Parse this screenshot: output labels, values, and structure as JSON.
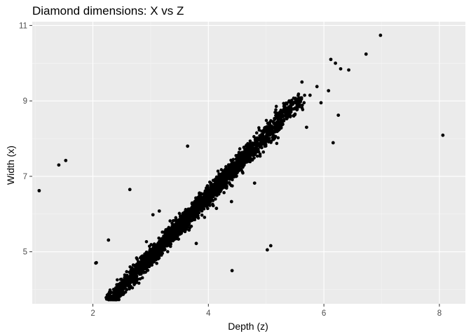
{
  "chart_data": {
    "type": "scatter",
    "title": "Diamond dimensions: X vs Z",
    "xlabel": "Depth (z)",
    "ylabel": "Width (x)",
    "xlim": [
      0.95,
      8.45
    ],
    "ylim": [
      3.62,
      11.1
    ],
    "x_ticks": [
      2,
      4,
      6,
      8
    ],
    "y_ticks": [
      5,
      7,
      9,
      11
    ],
    "grid": true,
    "panel_color": "#ebebeb",
    "point_color": "#000000",
    "trend": {
      "ratio": 1.62,
      "z_min": 2.29,
      "z_max": 5.6,
      "density_peak_z": 3.6,
      "spread": 0.085
    },
    "outliers": [
      {
        "x": 1.07,
        "y": 6.62
      },
      {
        "x": 1.41,
        "y": 7.3
      },
      {
        "x": 1.53,
        "y": 7.42
      },
      {
        "x": 2.06,
        "y": 4.71
      },
      {
        "x": 2.27,
        "y": 5.31
      },
      {
        "x": 2.64,
        "y": 6.65
      },
      {
        "x": 2.05,
        "y": 4.7
      },
      {
        "x": 2.28,
        "y": 3.78
      },
      {
        "x": 2.25,
        "y": 3.85
      },
      {
        "x": 3.79,
        "y": 5.22
      },
      {
        "x": 4.41,
        "y": 4.5
      },
      {
        "x": 5.02,
        "y": 5.05
      },
      {
        "x": 5.08,
        "y": 5.16
      },
      {
        "x": 4.8,
        "y": 6.82
      },
      {
        "x": 4.14,
        "y": 6.15
      },
      {
        "x": 4.4,
        "y": 6.33
      },
      {
        "x": 3.64,
        "y": 7.8
      },
      {
        "x": 3.04,
        "y": 5.98
      },
      {
        "x": 3.15,
        "y": 6.08
      },
      {
        "x": 6.16,
        "y": 7.89
      },
      {
        "x": 6.12,
        "y": 10.1
      },
      {
        "x": 6.2,
        "y": 10.0
      },
      {
        "x": 6.29,
        "y": 9.85
      },
      {
        "x": 6.43,
        "y": 9.82
      },
      {
        "x": 6.73,
        "y": 10.24
      },
      {
        "x": 6.98,
        "y": 10.74
      },
      {
        "x": 8.06,
        "y": 8.09
      },
      {
        "x": 5.95,
        "y": 8.95
      },
      {
        "x": 6.08,
        "y": 9.27
      },
      {
        "x": 5.88,
        "y": 9.38
      },
      {
        "x": 5.62,
        "y": 9.5
      },
      {
        "x": 5.76,
        "y": 9.15
      },
      {
        "x": 6.25,
        "y": 8.62
      },
      {
        "x": 5.5,
        "y": 8.65
      },
      {
        "x": 5.4,
        "y": 9.0
      },
      {
        "x": 5.7,
        "y": 8.3
      }
    ]
  }
}
